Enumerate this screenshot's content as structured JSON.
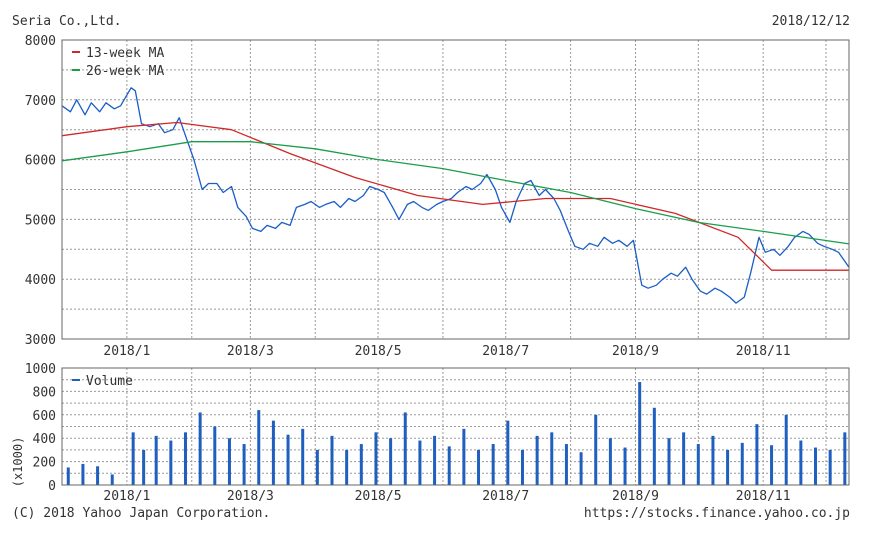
{
  "header": {
    "company": "Seria Co.,Ltd.",
    "date": "2018/12/12"
  },
  "footer": {
    "copyright": "(C) 2018 Yahoo Japan Corporation.",
    "url": "https://stocks.finance.yahoo.co.jp"
  },
  "colors": {
    "price": "#1a5ec8",
    "ma13": "#d02828",
    "ma26": "#1a9e4a",
    "volume": "#1f5fbf",
    "grid": "#9a9a9a"
  },
  "chart_data": [
    {
      "type": "line",
      "ylim": [
        3000,
        8000
      ],
      "yticks": [
        "8000",
        "7000",
        "6000",
        "5000",
        "4000",
        "3000"
      ],
      "xlim": [
        "2017-12-01",
        "2018-12-12"
      ],
      "xticks": [
        {
          "label": "2018/1",
          "date": "2018-01-01"
        },
        {
          "label": "2018/3",
          "date": "2018-03-01"
        },
        {
          "label": "2018/5",
          "date": "2018-05-01"
        },
        {
          "label": "2018/7",
          "date": "2018-07-01"
        },
        {
          "label": "2018/9",
          "date": "2018-09-01"
        },
        {
          "label": "2018/11",
          "date": "2018-11-01"
        }
      ],
      "legend": {
        "placement": "top-left",
        "entries": [
          "13-week MA",
          "26-week MA"
        ]
      },
      "series": [
        {
          "name": "price",
          "x": [
            "2017-12-01",
            "2017-12-05",
            "2017-12-08",
            "2017-12-12",
            "2017-12-15",
            "2017-12-19",
            "2017-12-22",
            "2017-12-26",
            "2017-12-29",
            "2018-01-03",
            "2018-01-05",
            "2018-01-08",
            "2018-01-12",
            "2018-01-16",
            "2018-01-19",
            "2018-01-23",
            "2018-01-26",
            "2018-01-30",
            "2018-02-02",
            "2018-02-06",
            "2018-02-09",
            "2018-02-13",
            "2018-02-16",
            "2018-02-20",
            "2018-02-23",
            "2018-02-27",
            "2018-03-02",
            "2018-03-06",
            "2018-03-09",
            "2018-03-13",
            "2018-03-16",
            "2018-03-20",
            "2018-03-23",
            "2018-03-27",
            "2018-03-30",
            "2018-04-03",
            "2018-04-06",
            "2018-04-10",
            "2018-04-13",
            "2018-04-17",
            "2018-04-20",
            "2018-04-24",
            "2018-04-27",
            "2018-05-01",
            "2018-05-04",
            "2018-05-08",
            "2018-05-11",
            "2018-05-15",
            "2018-05-18",
            "2018-05-22",
            "2018-05-25",
            "2018-05-29",
            "2018-06-01",
            "2018-06-05",
            "2018-06-08",
            "2018-06-12",
            "2018-06-15",
            "2018-06-19",
            "2018-06-22",
            "2018-06-26",
            "2018-06-29",
            "2018-07-03",
            "2018-07-06",
            "2018-07-10",
            "2018-07-13",
            "2018-07-17",
            "2018-07-20",
            "2018-07-24",
            "2018-07-27",
            "2018-07-31",
            "2018-08-03",
            "2018-08-07",
            "2018-08-10",
            "2018-08-14",
            "2018-08-17",
            "2018-08-21",
            "2018-08-24",
            "2018-08-28",
            "2018-08-31",
            "2018-09-04",
            "2018-09-07",
            "2018-09-11",
            "2018-09-14",
            "2018-09-18",
            "2018-09-21",
            "2018-09-25",
            "2018-09-28",
            "2018-10-02",
            "2018-10-05",
            "2018-10-09",
            "2018-10-12",
            "2018-10-16",
            "2018-10-19",
            "2018-10-23",
            "2018-10-26",
            "2018-10-30",
            "2018-11-02",
            "2018-11-06",
            "2018-11-09",
            "2018-11-13",
            "2018-11-16",
            "2018-11-20",
            "2018-11-23",
            "2018-11-27",
            "2018-11-30",
            "2018-12-04",
            "2018-12-07",
            "2018-12-12"
          ],
          "values": [
            6900,
            6800,
            7000,
            6750,
            6950,
            6800,
            6950,
            6850,
            6900,
            7200,
            7150,
            6600,
            6550,
            6600,
            6450,
            6500,
            6700,
            6300,
            6000,
            5500,
            5600,
            5600,
            5450,
            5550,
            5200,
            5050,
            4850,
            4800,
            4900,
            4850,
            4950,
            4900,
            5200,
            5250,
            5300,
            5200,
            5250,
            5300,
            5200,
            5350,
            5300,
            5400,
            5550,
            5500,
            5450,
            5200,
            5000,
            5250,
            5300,
            5200,
            5150,
            5250,
            5300,
            5350,
            5450,
            5550,
            5500,
            5600,
            5750,
            5500,
            5200,
            4950,
            5300,
            5600,
            5650,
            5400,
            5500,
            5350,
            5150,
            4800,
            4550,
            4500,
            4600,
            4550,
            4700,
            4600,
            4650,
            4550,
            4650,
            3900,
            3850,
            3900,
            4000,
            4100,
            4050,
            4200,
            4000,
            3800,
            3750,
            3850,
            3800,
            3700,
            3600,
            3700,
            4100,
            4700,
            4450,
            4500,
            4400,
            4550,
            4700,
            4800,
            4750,
            4600,
            4550,
            4500,
            4450,
            4200
          ]
        },
        {
          "name": "13-week MA",
          "x": [
            "2017-12-01",
            "2018-01-01",
            "2018-01-25",
            "2018-02-20",
            "2018-03-20",
            "2018-04-20",
            "2018-05-20",
            "2018-06-20",
            "2018-07-20",
            "2018-08-20",
            "2018-09-20",
            "2018-10-20",
            "2018-11-05",
            "2018-12-12"
          ],
          "values": [
            6400,
            6550,
            6620,
            6500,
            6100,
            5700,
            5400,
            5250,
            5350,
            5350,
            5100,
            4700,
            4150,
            4150
          ]
        },
        {
          "name": "26-week MA",
          "x": [
            "2017-12-01",
            "2018-01-01",
            "2018-02-01",
            "2018-03-01",
            "2018-04-01",
            "2018-05-01",
            "2018-06-01",
            "2018-07-01",
            "2018-08-01",
            "2018-09-01",
            "2018-10-01",
            "2018-11-01",
            "2018-12-12"
          ],
          "values": [
            5980,
            6130,
            6300,
            6300,
            6180,
            6000,
            5850,
            5650,
            5450,
            5180,
            4950,
            4800,
            4590
          ]
        }
      ]
    },
    {
      "type": "bar",
      "title": "Volume",
      "ylabel": "(x1000)",
      "ylim": [
        0,
        1000
      ],
      "yticks": [
        "1000",
        "800",
        "600",
        "400",
        "200",
        "0"
      ],
      "legend": {
        "placement": "top-left",
        "entries": [
          "Volume"
        ]
      },
      "x": [
        "2017-12-04",
        "2017-12-11",
        "2017-12-18",
        "2017-12-25",
        "2018-01-04",
        "2018-01-09",
        "2018-01-15",
        "2018-01-22",
        "2018-01-29",
        "2018-02-05",
        "2018-02-12",
        "2018-02-19",
        "2018-02-26",
        "2018-03-05",
        "2018-03-12",
        "2018-03-19",
        "2018-03-26",
        "2018-04-02",
        "2018-04-09",
        "2018-04-16",
        "2018-04-23",
        "2018-04-30",
        "2018-05-07",
        "2018-05-14",
        "2018-05-21",
        "2018-05-28",
        "2018-06-04",
        "2018-06-11",
        "2018-06-18",
        "2018-06-25",
        "2018-07-02",
        "2018-07-09",
        "2018-07-16",
        "2018-07-23",
        "2018-07-30",
        "2018-08-06",
        "2018-08-13",
        "2018-08-20",
        "2018-08-27",
        "2018-09-03",
        "2018-09-10",
        "2018-09-17",
        "2018-09-24",
        "2018-10-01",
        "2018-10-08",
        "2018-10-15",
        "2018-10-22",
        "2018-10-29",
        "2018-11-05",
        "2018-11-12",
        "2018-11-19",
        "2018-11-26",
        "2018-12-03",
        "2018-12-10"
      ],
      "values": [
        150,
        180,
        160,
        90,
        450,
        300,
        420,
        380,
        450,
        620,
        500,
        400,
        350,
        640,
        550,
        430,
        480,
        300,
        420,
        300,
        350,
        450,
        400,
        620,
        380,
        420,
        330,
        480,
        300,
        350,
        550,
        300,
        420,
        450,
        350,
        280,
        600,
        400,
        320,
        880,
        660,
        400,
        450,
        350,
        420,
        300,
        360,
        520,
        340,
        600,
        380,
        320,
        300,
        450
      ]
    }
  ]
}
